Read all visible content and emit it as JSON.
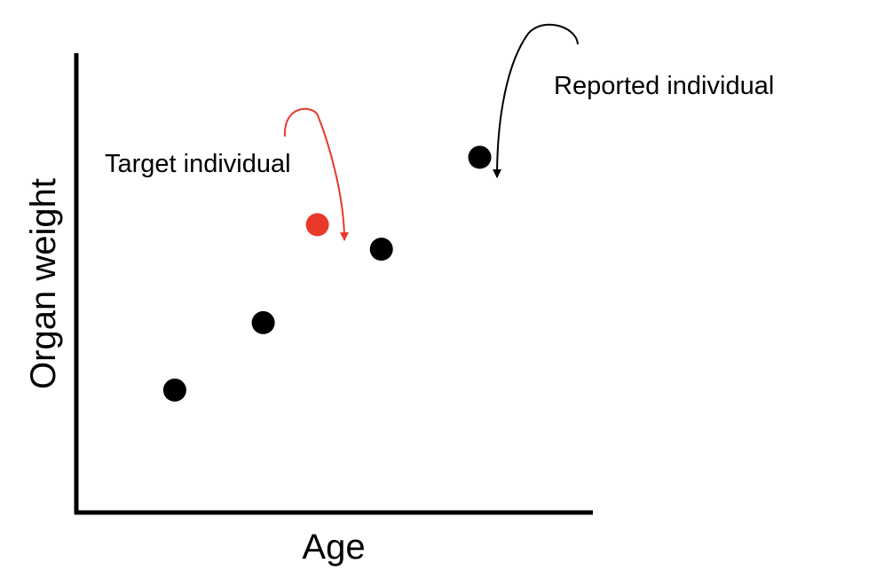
{
  "chart_data": {
    "type": "scatter",
    "xlabel": "Age",
    "ylabel": "Organ weight",
    "points": [
      {
        "x": 2.0,
        "y": 2.0,
        "highlight": false
      },
      {
        "x": 3.8,
        "y": 3.1,
        "highlight": false
      },
      {
        "x": 4.9,
        "y": 4.7,
        "highlight": true
      },
      {
        "x": 6.2,
        "y": 4.3,
        "highlight": false
      },
      {
        "x": 8.2,
        "y": 5.8,
        "highlight": false
      }
    ],
    "annotations": [
      {
        "text": "Target individual",
        "target_point": 2,
        "color": "#e8392b"
      },
      {
        "text": "Reported individual",
        "target_point": 4,
        "color": "#000000"
      }
    ]
  },
  "colors": {
    "axis": "#000000",
    "point": "#000000",
    "highlight": "#e8392b"
  }
}
